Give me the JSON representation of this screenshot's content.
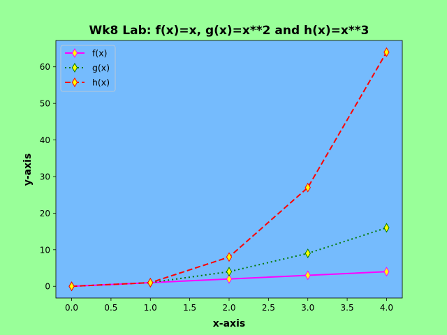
{
  "colors": {
    "figure_bg": "#99ff99",
    "axes_bg": "#75bbfd",
    "f_line": "#ff00ff",
    "g_line": "#007700",
    "h_line": "#ff0000",
    "marker_fill": "#ffff00"
  },
  "chart_data": {
    "type": "line",
    "title": "Wk8 Lab: f(x)=x, g(x)=x**2 and h(x)=x**3",
    "xlabel": "x-axis",
    "ylabel": "y-axis",
    "xlim": [
      -0.2,
      4.2
    ],
    "ylim": [
      -3.2,
      67.2
    ],
    "xticks": [
      0.0,
      0.5,
      1.0,
      1.5,
      2.0,
      2.5,
      3.0,
      3.5,
      4.0
    ],
    "xtick_labels": [
      "0.0",
      "0.5",
      "1.0",
      "1.5",
      "2.0",
      "2.5",
      "3.0",
      "3.5",
      "4.0"
    ],
    "yticks": [
      0,
      10,
      20,
      30,
      40,
      50,
      60
    ],
    "ytick_labels": [
      "0",
      "10",
      "20",
      "30",
      "40",
      "50",
      "60"
    ],
    "grid": false,
    "legend_position": "upper-left",
    "x": [
      0,
      1,
      2,
      3,
      4
    ],
    "series": [
      {
        "name": "f(x)",
        "values": [
          0,
          1,
          2,
          3,
          4
        ],
        "line_style": "solid",
        "color": "#ff00ff",
        "marker": "thin-diamond",
        "marker_fill": "#ffff00",
        "marker_edge": "#ff00ff"
      },
      {
        "name": "g(x)",
        "values": [
          0,
          1,
          4,
          9,
          16
        ],
        "line_style": "dotted",
        "color": "#007700",
        "marker": "thin-diamond",
        "marker_fill": "#ffff00",
        "marker_edge": "#007700"
      },
      {
        "name": "h(x)",
        "values": [
          0,
          1,
          8,
          27,
          64
        ],
        "line_style": "dashed",
        "color": "#ff0000",
        "marker": "thin-diamond",
        "marker_fill": "#ffff00",
        "marker_edge": "#ff0000"
      }
    ]
  }
}
